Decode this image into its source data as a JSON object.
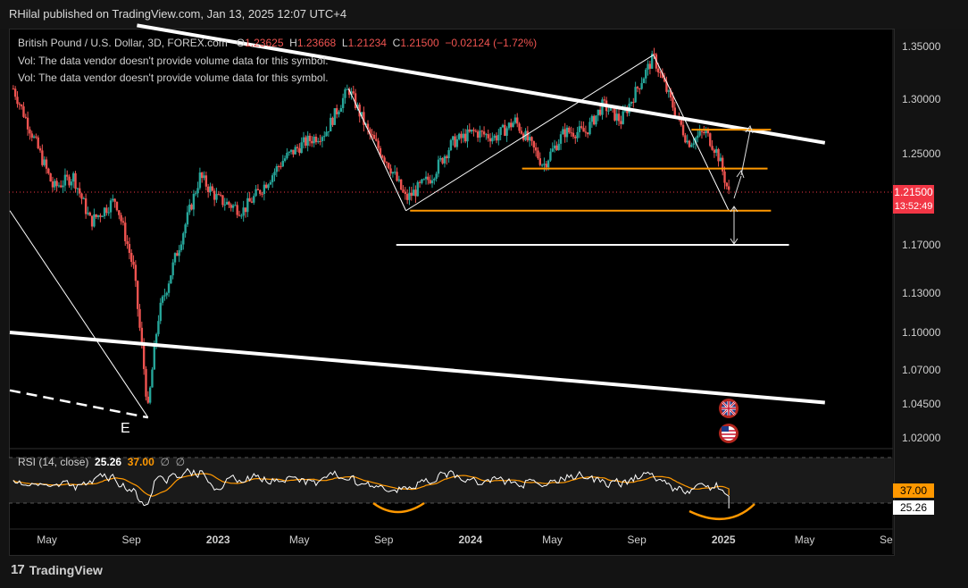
{
  "publisher": "RHilal published on TradingView.com, Jan 13, 2025 12:07 UTC+4",
  "legend": {
    "symbol": "British Pound / U.S. Dollar, 3D, FOREX.com",
    "o_label": "O",
    "o": "1.23625",
    "h_label": "H",
    "h": "1.23668",
    "l_label": "L",
    "l": "1.21234",
    "c_label": "C",
    "c": "1.21500",
    "change": "−0.02124 (−1.72%)",
    "vol1": "Vol: The data vendor doesn't provide volume data for this symbol.",
    "vol2": "Vol: The data vendor doesn't provide volume data for this symbol."
  },
  "price_tag": {
    "price": "1.21500",
    "countdown": "13:52:49",
    "color": "#f23645"
  },
  "rsi_tag": {
    "ma": "37.00",
    "rsi": "25.26",
    "ma_color": "#ff9800"
  },
  "rsi_legend": {
    "name": "RSI (14, close)",
    "rsi": "25.26",
    "ma": "37.00",
    "e1": "∅",
    "e2": "∅"
  },
  "annotation_label": "E",
  "brand": "TradingView",
  "colors": {
    "up": "#26a69a",
    "down": "#ef5350",
    "rsi": "#ffffff",
    "rsi_ma": "#ff9800",
    "orange_lines": "#ff9800",
    "trendlines": "#ffffff"
  },
  "chart_data": {
    "type": "candlestick",
    "interval": "3D",
    "y_ticks": [
      "1.35000",
      "1.30000",
      "1.25000",
      "1.17000",
      "1.13000",
      "1.10000",
      "1.07000",
      "1.04500",
      "1.02000"
    ],
    "x_ticks": [
      "May",
      "Sep",
      "2023",
      "May",
      "Sep",
      "2024",
      "May",
      "Sep",
      "2025",
      "May",
      "Se"
    ],
    "close_path": [
      {
        "t": "2022-03-15",
        "v": 1.31
      },
      {
        "t": "2022-04-10",
        "v": 1.27
      },
      {
        "t": "2022-05-12",
        "v": 1.22
      },
      {
        "t": "2022-06-10",
        "v": 1.23
      },
      {
        "t": "2022-07-05",
        "v": 1.19
      },
      {
        "t": "2022-08-10",
        "v": 1.21
      },
      {
        "t": "2022-09-05",
        "v": 1.15
      },
      {
        "t": "2022-09-26",
        "v": 1.04
      },
      {
        "t": "2022-10-10",
        "v": 1.11
      },
      {
        "t": "2022-11-10",
        "v": 1.17
      },
      {
        "t": "2022-12-10",
        "v": 1.23
      },
      {
        "t": "2023-01-05",
        "v": 1.21
      },
      {
        "t": "2023-02-10",
        "v": 1.2
      },
      {
        "t": "2023-03-10",
        "v": 1.22
      },
      {
        "t": "2023-04-10",
        "v": 1.245
      },
      {
        "t": "2023-05-10",
        "v": 1.26
      },
      {
        "t": "2023-06-10",
        "v": 1.27
      },
      {
        "t": "2023-07-13",
        "v": 1.31
      },
      {
        "t": "2023-08-10",
        "v": 1.27
      },
      {
        "t": "2023-09-10",
        "v": 1.24
      },
      {
        "t": "2023-10-04",
        "v": 1.21
      },
      {
        "t": "2023-11-10",
        "v": 1.23
      },
      {
        "t": "2023-12-10",
        "v": 1.26
      },
      {
        "t": "2024-01-10",
        "v": 1.27
      },
      {
        "t": "2024-02-10",
        "v": 1.265
      },
      {
        "t": "2024-03-10",
        "v": 1.28
      },
      {
        "t": "2024-04-20",
        "v": 1.24
      },
      {
        "t": "2024-05-20",
        "v": 1.27
      },
      {
        "t": "2024-06-20",
        "v": 1.27
      },
      {
        "t": "2024-07-15",
        "v": 1.295
      },
      {
        "t": "2024-08-10",
        "v": 1.28
      },
      {
        "t": "2024-09-26",
        "v": 1.34
      },
      {
        "t": "2024-10-20",
        "v": 1.3
      },
      {
        "t": "2024-11-15",
        "v": 1.26
      },
      {
        "t": "2024-12-10",
        "v": 1.27
      },
      {
        "t": "2024-12-28",
        "v": 1.25
      },
      {
        "t": "2025-01-13",
        "v": 1.215
      }
    ],
    "horizontal_levels": [
      {
        "price": 1.272,
        "color": "#ff9800",
        "from": "2024-11-20",
        "to": "2025-03-15"
      },
      {
        "price": 1.237,
        "color": "#ff9800",
        "from": "2024-03-20",
        "to": "2025-03-10"
      },
      {
        "price": 1.2,
        "color": "#ff9800",
        "from": "2023-10-10",
        "to": "2025-03-15"
      },
      {
        "price": 1.17,
        "color": "#ffffff",
        "from": "2023-09-20",
        "to": "2025-04-10"
      }
    ],
    "trendlines": [
      {
        "from": {
          "t": "2022-09-10",
          "v": 1.37
        },
        "to": {
          "t": "2025-06-01",
          "v": 1.26
        }
      },
      {
        "from": {
          "t": "2022-02-15",
          "v": 1.1
        },
        "to": {
          "t": "2025-06-01",
          "v": 1.046
        }
      },
      {
        "from": {
          "t": "2022-02-15",
          "v": 1.055
        },
        "to": {
          "t": "2022-09-26",
          "v": 1.035
        }
      },
      {
        "from": {
          "t": "2022-02-15",
          "v": 1.2
        },
        "to": {
          "t": "2022-09-26",
          "v": 1.035
        }
      },
      {
        "from": {
          "t": "2023-07-13",
          "v": 1.31
        },
        "to": {
          "t": "2023-10-04",
          "v": 1.2
        }
      },
      {
        "from": {
          "t": "2023-10-04",
          "v": 1.2
        },
        "to": {
          "t": "2024-09-26",
          "v": 1.342
        }
      },
      {
        "from": {
          "t": "2024-09-26",
          "v": 1.342
        },
        "to": {
          "t": "2025-01-13",
          "v": 1.2
        }
      }
    ],
    "rsi": {
      "levels": [
        70,
        30
      ],
      "last": 25.26,
      "ma_last": 37.0
    }
  }
}
